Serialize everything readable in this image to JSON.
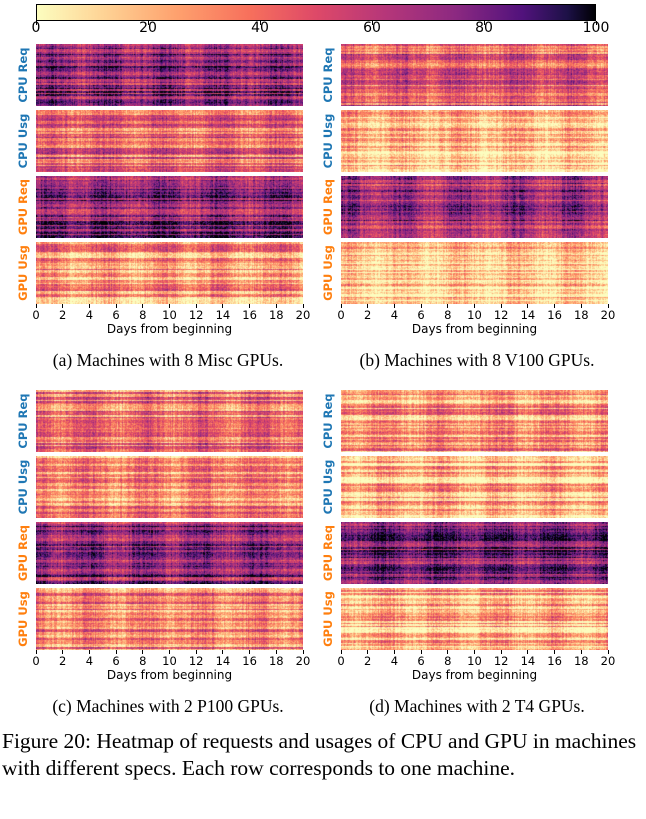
{
  "colors": {
    "cpu_label": "#1f77b4",
    "gpu_label": "#ff7f0e",
    "colormap": "magma_r"
  },
  "colorbar": {
    "ticks": [
      "0",
      "20",
      "40",
      "60",
      "80",
      "100"
    ],
    "range": [
      0,
      100
    ]
  },
  "chart_data": [
    {
      "type": "heatmap",
      "caption": "(a) Machines with 8 Misc GPUs.",
      "xlabel": "Days from beginning",
      "xticks": [
        "0",
        "2",
        "4",
        "6",
        "8",
        "10",
        "12",
        "14",
        "16",
        "18",
        "20"
      ],
      "xlim": [
        0,
        20
      ],
      "rows": [
        {
          "label": "CPU Req",
          "metric": "cpu",
          "mean_level": 72
        },
        {
          "label": "CPU Usg",
          "metric": "cpu",
          "mean_level": 42
        },
        {
          "label": "GPU Req",
          "metric": "gpu",
          "mean_level": 74
        },
        {
          "label": "GPU Usg",
          "metric": "gpu",
          "mean_level": 28
        }
      ]
    },
    {
      "type": "heatmap",
      "caption": "(b) Machines with 8 V100 GPUs.",
      "xlabel": "Days from beginning",
      "xticks": [
        "0",
        "2",
        "4",
        "6",
        "8",
        "10",
        "12",
        "14",
        "16",
        "18",
        "20"
      ],
      "xlim": [
        0,
        20
      ],
      "rows": [
        {
          "label": "CPU Req",
          "metric": "cpu",
          "mean_level": 45
        },
        {
          "label": "CPU Usg",
          "metric": "cpu",
          "mean_level": 15
        },
        {
          "label": "GPU Req",
          "metric": "gpu",
          "mean_level": 65
        },
        {
          "label": "GPU Usg",
          "metric": "gpu",
          "mean_level": 12
        }
      ]
    },
    {
      "type": "heatmap",
      "caption": "(c) Machines with 2 P100 GPUs.",
      "xlabel": "Days from beginning",
      "xticks": [
        "0",
        "2",
        "4",
        "6",
        "8",
        "10",
        "12",
        "14",
        "16",
        "18",
        "20"
      ],
      "xlim": [
        0,
        20
      ],
      "rows": [
        {
          "label": "CPU Req",
          "metric": "cpu",
          "mean_level": 40
        },
        {
          "label": "CPU Usg",
          "metric": "cpu",
          "mean_level": 30
        },
        {
          "label": "GPU Req",
          "metric": "gpu",
          "mean_level": 72
        },
        {
          "label": "GPU Usg",
          "metric": "gpu",
          "mean_level": 32
        }
      ]
    },
    {
      "type": "heatmap",
      "caption": "(d) Machines with 2 T4 GPUs.",
      "xlabel": "Days from beginning",
      "xticks": [
        "0",
        "2",
        "4",
        "6",
        "8",
        "10",
        "12",
        "14",
        "16",
        "18",
        "20"
      ],
      "xlim": [
        0,
        20
      ],
      "rows": [
        {
          "label": "CPU Req",
          "metric": "cpu",
          "mean_level": 28
        },
        {
          "label": "CPU Usg",
          "metric": "cpu",
          "mean_level": 18
        },
        {
          "label": "GPU Req",
          "metric": "gpu",
          "mean_level": 76
        },
        {
          "label": "GPU Usg",
          "metric": "gpu",
          "mean_level": 20
        }
      ]
    }
  ],
  "figure_caption": "Figure 20: Heatmap of requests and usages of CPU and GPU in machines with different specs. Each row corresponds to one machine."
}
